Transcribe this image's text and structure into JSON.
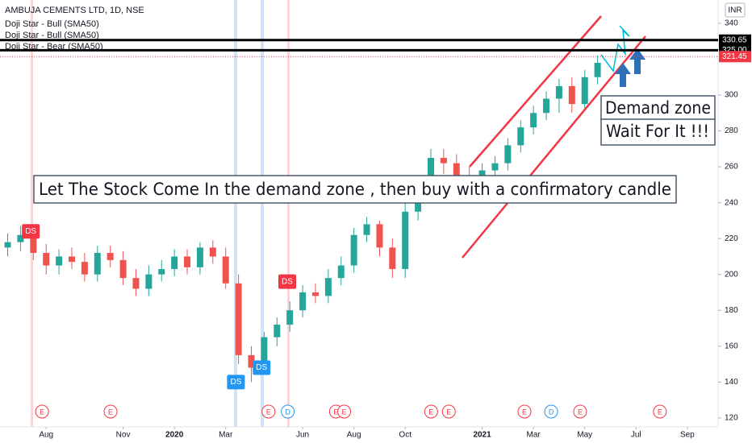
{
  "chart_data": {
    "type": "candlestick",
    "title": "AMBUJA CEMENTS LTD, 1D, NSE",
    "indicators": [
      "Doji Star - Bull (SMA50)",
      "Doji Star - Bull (SMA50)",
      "Doji Star - Bear (SMA50)"
    ],
    "currency": "INR",
    "x": [
      -0.5,
      0,
      0.5,
      1,
      1.5,
      2,
      2.5,
      3,
      3.5,
      4,
      4.5,
      5,
      5.5,
      6,
      6.5,
      7,
      7.5,
      8,
      8.5,
      9,
      9.5,
      10,
      10.5,
      11,
      11.5,
      12,
      12.5,
      13,
      13.5,
      14,
      14.5,
      15,
      15.5,
      16,
      16.5,
      17,
      17.5,
      18,
      18.5,
      19,
      19.5,
      20,
      20.5,
      21,
      21.5,
      22,
      22.5
    ],
    "open": [
      215,
      218,
      222,
      212,
      205,
      210,
      207,
      200,
      212,
      208,
      198,
      192,
      200,
      203,
      210,
      204,
      215,
      210,
      195,
      155,
      148,
      165,
      172,
      180,
      190,
      188,
      198,
      205,
      222,
      228,
      215,
      203,
      235,
      250,
      265,
      262,
      255,
      245,
      258,
      262,
      272,
      282,
      290,
      298,
      305,
      295,
      310
    ],
    "high": [
      223,
      227,
      226,
      217,
      214,
      215,
      212,
      216,
      216,
      213,
      203,
      205,
      208,
      214,
      214,
      218,
      219,
      215,
      200,
      160,
      168,
      176,
      185,
      194,
      195,
      203,
      210,
      226,
      232,
      230,
      220,
      240,
      255,
      270,
      270,
      267,
      260,
      262,
      266,
      276,
      286,
      294,
      302,
      309,
      310,
      314,
      322
    ],
    "low": [
      210,
      213,
      208,
      200,
      200,
      203,
      196,
      196,
      204,
      194,
      188,
      188,
      196,
      199,
      200,
      200,
      206,
      192,
      150,
      140,
      145,
      160,
      168,
      176,
      184,
      184,
      194,
      201,
      218,
      210,
      198,
      198,
      230,
      246,
      256,
      250,
      240,
      240,
      254,
      258,
      268,
      278,
      286,
      290,
      290,
      291,
      306
    ],
    "close": [
      218,
      222,
      212,
      205,
      210,
      207,
      200,
      212,
      208,
      198,
      192,
      200,
      203,
      210,
      204,
      215,
      210,
      195,
      155,
      148,
      165,
      172,
      180,
      190,
      188,
      198,
      205,
      222,
      228,
      215,
      203,
      235,
      250,
      265,
      262,
      255,
      245,
      258,
      262,
      272,
      282,
      290,
      298,
      305,
      295,
      310,
      318
    ],
    "up_color": "#26a69a",
    "down_color": "#ef5350",
    "xlim": [
      -0.8,
      27.2
    ],
    "xticks": [
      {
        "value": 1,
        "label": "Aug"
      },
      {
        "value": 4,
        "label": "Nov"
      },
      {
        "value": 6,
        "label": "2020"
      },
      {
        "value": 8,
        "label": "Mar"
      },
      {
        "value": 11,
        "label": "Jun"
      },
      {
        "value": 13,
        "label": "Aug"
      },
      {
        "value": 15,
        "label": "Oct"
      },
      {
        "value": 18,
        "label": "2021"
      },
      {
        "value": 20,
        "label": "Mar"
      },
      {
        "value": 22,
        "label": "May"
      },
      {
        "value": 24,
        "label": "Jul"
      },
      {
        "value": 26,
        "label": "Sep"
      }
    ],
    "ylim": [
      115,
      353
    ],
    "yticks": [
      120,
      140,
      160,
      180,
      200,
      220,
      240,
      260,
      280,
      300,
      340
    ],
    "levels": [
      {
        "value": 330.65,
        "color": "#000000"
      },
      {
        "value": {
          "value": 325,
          "label": "325.00"
        },
        "color": "#000000"
      },
      {
        "value": 321.45,
        "color": "#f23645"
      }
    ],
    "markers": [
      {
        "label": "DS",
        "x": 0.4,
        "price": 224,
        "color": "#f23645"
      },
      {
        "label": "DS",
        "x": 8.4,
        "price": 140,
        "color": "#2196f3"
      },
      {
        "label": "DS",
        "x": 9.4,
        "price": 148,
        "color": "#2196f3"
      },
      {
        "label": "DS",
        "x": 10.4,
        "price": 196,
        "color": "#f23645"
      }
    ],
    "events": [
      {
        "label": "E",
        "x": 0.84,
        "color": "#f23645"
      },
      {
        "label": "E",
        "x": 3.51,
        "color": "#f23645"
      },
      {
        "label": "E",
        "x": 9.67,
        "color": "#f23645"
      },
      {
        "label": "D",
        "x": 10.42,
        "color": "#2196f3"
      },
      {
        "label": "E",
        "x": 12.3,
        "color": "#f23645"
      },
      {
        "label": "E",
        "x": 12.62,
        "color": "#f23645"
      },
      {
        "label": "E",
        "x": 16.01,
        "color": "#f23645"
      },
      {
        "label": "E",
        "x": 16.7,
        "color": "#f23645"
      },
      {
        "label": "E",
        "x": 19.65,
        "color": "#f23645"
      },
      {
        "label": "D",
        "x": 20.69,
        "color": "#2196f3"
      },
      {
        "label": "E",
        "x": 21.82,
        "color": "#f23645"
      },
      {
        "label": "E",
        "x": 24.93,
        "color": "#f23645"
      }
    ],
    "annotations": [
      "Let The Stock Come In the demand zone , then buy with a confirmatory candle",
      "Demand zone",
      "Wait For It !!!"
    ]
  }
}
